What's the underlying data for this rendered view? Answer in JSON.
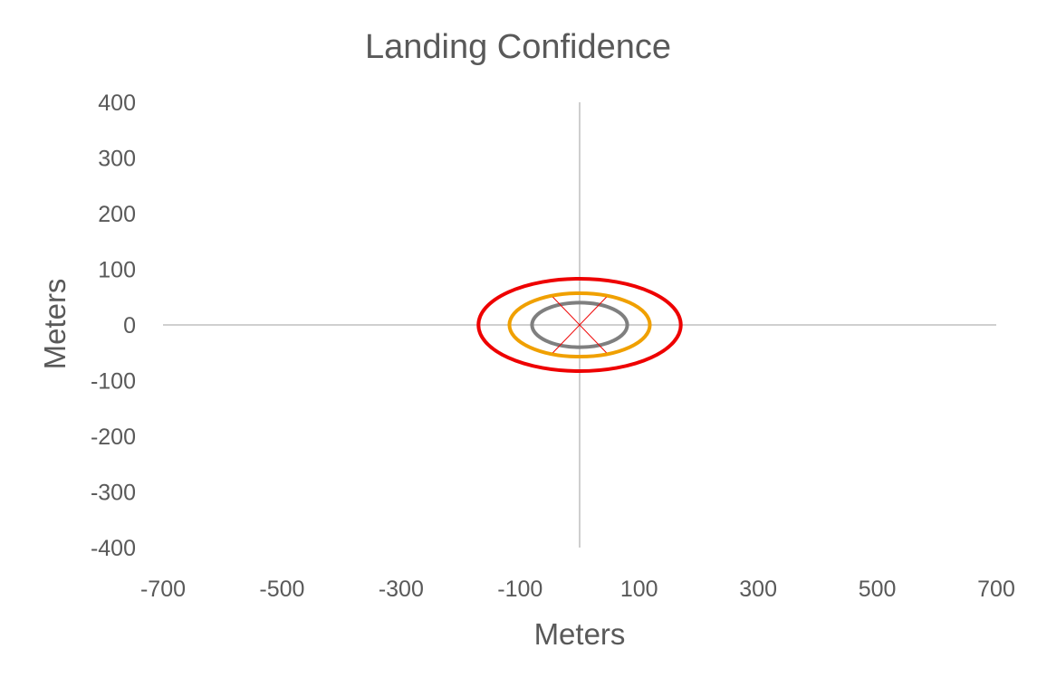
{
  "chart_data": {
    "type": "scatter",
    "title": "Landing Confidence",
    "xlabel": "Meters",
    "ylabel": "Meters",
    "xlim": [
      -700,
      700
    ],
    "ylim": [
      -400,
      400
    ],
    "x_ticks": [
      -700,
      -500,
      -300,
      -100,
      100,
      300,
      500,
      700
    ],
    "y_ticks": [
      400,
      300,
      200,
      100,
      0,
      -100,
      -200,
      -300,
      -400
    ],
    "grid": false,
    "legend": "none",
    "series": [
      {
        "shape": "ellipse",
        "center": [
          0,
          0
        ],
        "rx": 80,
        "ry": 40,
        "color": "#7f7f7f"
      },
      {
        "shape": "ellipse",
        "center": [
          0,
          0
        ],
        "rx": 118,
        "ry": 57,
        "color": "#f0a000"
      },
      {
        "shape": "ellipse",
        "center": [
          0,
          0
        ],
        "rx": 170,
        "ry": 83,
        "color": "#ee0000"
      }
    ],
    "crosshair": {
      "color": "#ee0000",
      "segments": [
        [
          [
            -45,
            -50
          ],
          [
            45,
            50
          ]
        ],
        [
          [
            -45,
            50
          ],
          [
            45,
            -50
          ]
        ]
      ]
    }
  }
}
